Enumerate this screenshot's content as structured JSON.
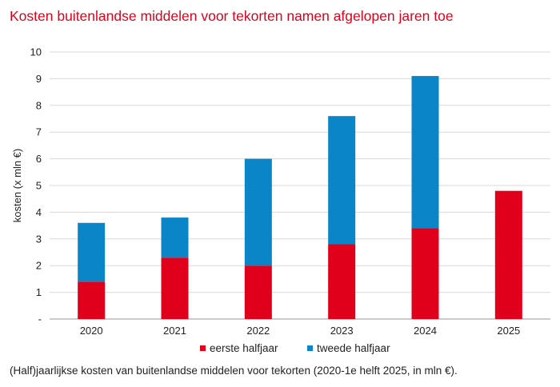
{
  "chart_data": {
    "type": "bar",
    "stacked": true,
    "title": "Kosten buitenlandse middelen voor tekorten namen afgelopen jaren toe",
    "caption": "(Half)jaarlijkse kosten van buitenlandse middelen voor tekorten (2020-1e helft 2025, in mln €).",
    "xlabel": "",
    "ylabel": "kosten (x mln €)",
    "ylim": [
      0,
      10
    ],
    "yticks": [
      "-",
      "1",
      "2",
      "3",
      "4",
      "5",
      "6",
      "7",
      "8",
      "9",
      "10"
    ],
    "categories": [
      "2020",
      "2021",
      "2022",
      "2023",
      "2024",
      "2025"
    ],
    "series": [
      {
        "name": "eerste halfjaar",
        "color": "#e0001b",
        "values": [
          1.4,
          2.3,
          2.0,
          2.8,
          3.4,
          4.8
        ]
      },
      {
        "name": "tweede halfjaar",
        "color": "#0a86c8",
        "values": [
          2.2,
          1.5,
          4.0,
          4.8,
          5.7,
          0
        ]
      }
    ],
    "grid": true,
    "legend": "bottom-center"
  }
}
